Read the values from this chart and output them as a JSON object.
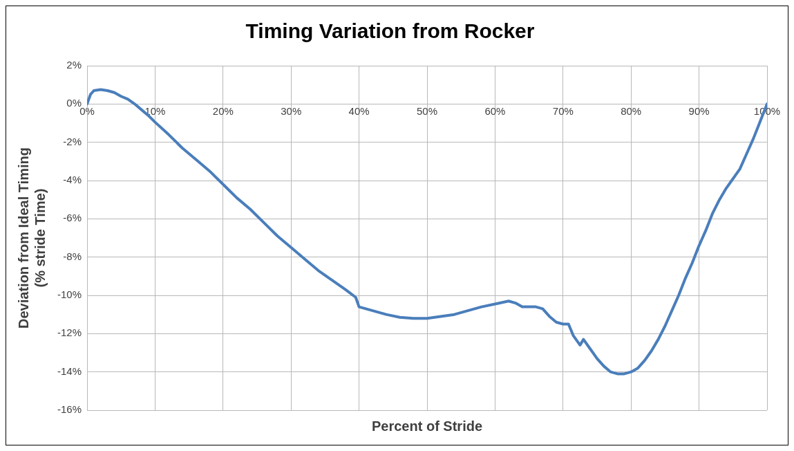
{
  "chart_data": {
    "type": "line",
    "title": "Timing Variation from Rocker",
    "xlabel": "Percent of Stride",
    "ylabel": "Deviation from Ideal Timing\n(% stride Time)",
    "xlim": [
      0,
      100
    ],
    "ylim": [
      -16,
      2
    ],
    "xticks": [
      {
        "value": 0,
        "label": "0%"
      },
      {
        "value": 10,
        "label": "10%"
      },
      {
        "value": 20,
        "label": "20%"
      },
      {
        "value": 30,
        "label": "30%"
      },
      {
        "value": 40,
        "label": "40%"
      },
      {
        "value": 50,
        "label": "50%"
      },
      {
        "value": 60,
        "label": "60%"
      },
      {
        "value": 70,
        "label": "70%"
      },
      {
        "value": 80,
        "label": "80%"
      },
      {
        "value": 90,
        "label": "90%"
      },
      {
        "value": 100,
        "label": "100%"
      }
    ],
    "yticks": [
      {
        "value": 2,
        "label": "2%"
      },
      {
        "value": 0,
        "label": "0%"
      },
      {
        "value": -2,
        "label": "-2%"
      },
      {
        "value": -4,
        "label": "-4%"
      },
      {
        "value": -6,
        "label": "-6%"
      },
      {
        "value": -8,
        "label": "-8%"
      },
      {
        "value": -10,
        "label": "-10%"
      },
      {
        "value": -12,
        "label": "-12%"
      },
      {
        "value": -14,
        "label": "-14%"
      },
      {
        "value": -16,
        "label": "-16%"
      }
    ],
    "grid": true,
    "legend": false,
    "marker": "none",
    "line_style": "solid",
    "x": [
      0,
      0.5,
      1,
      2,
      3,
      4,
      5,
      6,
      7,
      8,
      9,
      10,
      12,
      14,
      16,
      18,
      20,
      22,
      24,
      26,
      28,
      30,
      32,
      34,
      36,
      38,
      39.5,
      40,
      42,
      44,
      46,
      48,
      50,
      52,
      54,
      56,
      58,
      60,
      62,
      63,
      64,
      66,
      67,
      68,
      69,
      70,
      70.8,
      71.5,
      72.5,
      73,
      74,
      75,
      76,
      77,
      78,
      79,
      80,
      81,
      82,
      83,
      84,
      85,
      86,
      87,
      88,
      89,
      90,
      91,
      92,
      93,
      94,
      95,
      96,
      97,
      98,
      99,
      100
    ],
    "series": [
      {
        "color": "#4a7ebb",
        "values": [
          0,
          0.5,
          0.7,
          0.75,
          0.7,
          0.6,
          0.4,
          0.25,
          0,
          -0.3,
          -0.6,
          -0.95,
          -1.6,
          -2.3,
          -2.9,
          -3.5,
          -4.2,
          -4.9,
          -5.5,
          -6.2,
          -6.9,
          -7.5,
          -8.1,
          -8.7,
          -9.2,
          -9.7,
          -10.1,
          -10.6,
          -10.8,
          -11.0,
          -11.15,
          -11.2,
          -11.2,
          -11.1,
          -11.0,
          -10.8,
          -10.6,
          -10.45,
          -10.3,
          -10.4,
          -10.6,
          -10.6,
          -10.7,
          -11.1,
          -11.4,
          -11.5,
          -11.5,
          -12.1,
          -12.6,
          -12.3,
          -12.8,
          -13.3,
          -13.7,
          -14.0,
          -14.1,
          -14.1,
          -14.0,
          -13.8,
          -13.4,
          -12.9,
          -12.3,
          -11.6,
          -10.8,
          -10.0,
          -9.1,
          -8.3,
          -7.4,
          -6.6,
          -5.7,
          -5.0,
          -4.4,
          -3.9,
          -3.4,
          -2.6,
          -1.8,
          -0.9,
          0
        ]
      }
    ]
  }
}
